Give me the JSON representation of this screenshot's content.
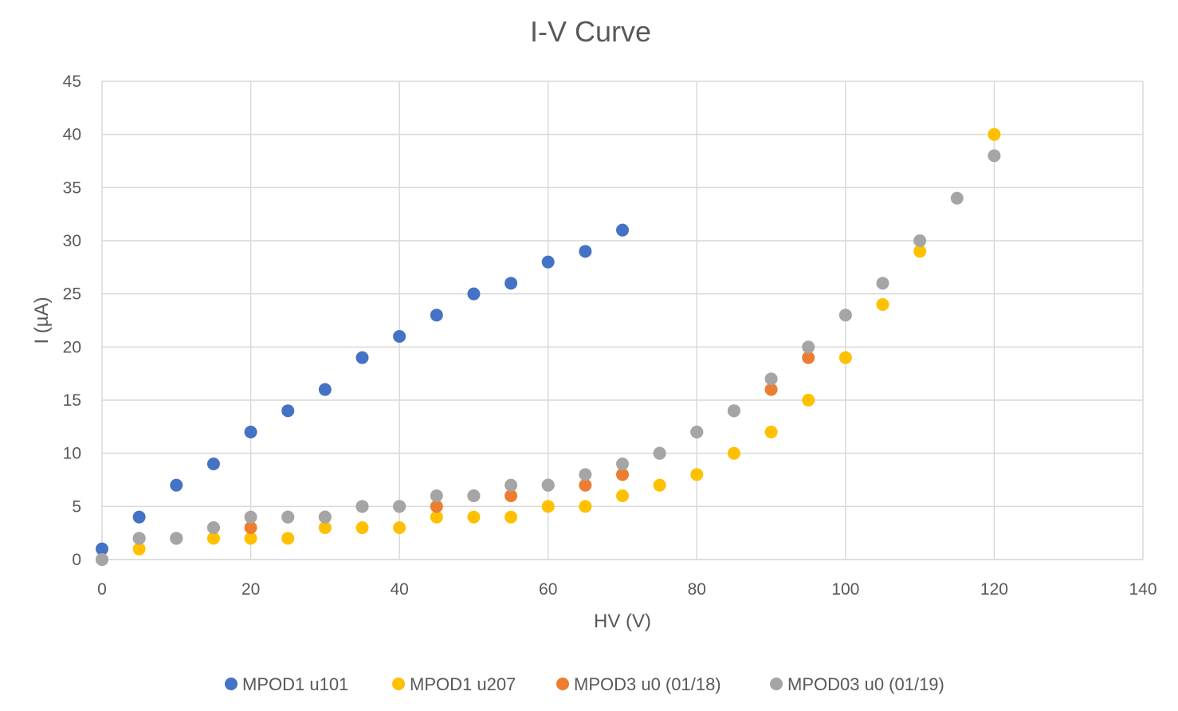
{
  "chart_data": {
    "type": "scatter",
    "title": "I-V Curve",
    "xlabel": "HV (V)",
    "ylabel": "I (µA)",
    "xlim": [
      0,
      140
    ],
    "ylim": [
      0,
      45
    ],
    "xticks": [
      0,
      20,
      40,
      60,
      80,
      100,
      120,
      140
    ],
    "yticks": [
      0,
      5,
      10,
      15,
      20,
      25,
      30,
      35,
      40,
      45
    ],
    "grid": true,
    "legend_position": "bottom",
    "series": [
      {
        "name": "MPOD1 u101",
        "color": "#4472C4",
        "points": [
          [
            0,
            1
          ],
          [
            5,
            4
          ],
          [
            10,
            7
          ],
          [
            15,
            9
          ],
          [
            20,
            12
          ],
          [
            25,
            14
          ],
          [
            30,
            16
          ],
          [
            35,
            19
          ],
          [
            40,
            21
          ],
          [
            45,
            23
          ],
          [
            50,
            25
          ],
          [
            55,
            26
          ],
          [
            60,
            28
          ],
          [
            65,
            29
          ],
          [
            70,
            31
          ]
        ]
      },
      {
        "name": "MPOD1 u207",
        "color": "#FFC000",
        "points": [
          [
            0,
            0
          ],
          [
            5,
            1
          ],
          [
            10,
            2
          ],
          [
            15,
            2
          ],
          [
            20,
            2
          ],
          [
            25,
            2
          ],
          [
            30,
            3
          ],
          [
            35,
            3
          ],
          [
            40,
            3
          ],
          [
            45,
            4
          ],
          [
            50,
            4
          ],
          [
            55,
            4
          ],
          [
            60,
            5
          ],
          [
            65,
            5
          ],
          [
            70,
            6
          ],
          [
            75,
            7
          ],
          [
            80,
            8
          ],
          [
            85,
            10
          ],
          [
            90,
            12
          ],
          [
            95,
            15
          ],
          [
            100,
            19
          ],
          [
            105,
            24
          ],
          [
            110,
            29
          ],
          [
            120,
            40
          ]
        ]
      },
      {
        "name": "MPOD3 u0 (01/18)",
        "color": "#ED7D31",
        "points": [
          [
            0,
            0
          ],
          [
            5,
            2
          ],
          [
            10,
            2
          ],
          [
            15,
            3
          ],
          [
            20,
            3
          ],
          [
            25,
            4
          ],
          [
            30,
            4
          ],
          [
            35,
            5
          ],
          [
            40,
            5
          ],
          [
            45,
            5
          ],
          [
            50,
            6
          ],
          [
            55,
            6
          ],
          [
            60,
            7
          ],
          [
            65,
            7
          ],
          [
            70,
            8
          ],
          [
            75,
            10
          ],
          [
            80,
            12
          ],
          [
            85,
            14
          ],
          [
            90,
            16
          ],
          [
            95,
            19
          ]
        ]
      },
      {
        "name": "MPOD03 u0 (01/19)",
        "color": "#A5A5A5",
        "points": [
          [
            0,
            0
          ],
          [
            5,
            2
          ],
          [
            10,
            2
          ],
          [
            15,
            3
          ],
          [
            20,
            4
          ],
          [
            25,
            4
          ],
          [
            30,
            4
          ],
          [
            35,
            5
          ],
          [
            40,
            5
          ],
          [
            45,
            6
          ],
          [
            50,
            6
          ],
          [
            55,
            7
          ],
          [
            60,
            7
          ],
          [
            65,
            8
          ],
          [
            70,
            9
          ],
          [
            75,
            10
          ],
          [
            80,
            12
          ],
          [
            85,
            14
          ],
          [
            90,
            17
          ],
          [
            95,
            20
          ],
          [
            100,
            23
          ],
          [
            105,
            26
          ],
          [
            110,
            30
          ],
          [
            115,
            34
          ],
          [
            120,
            38
          ]
        ]
      }
    ]
  }
}
